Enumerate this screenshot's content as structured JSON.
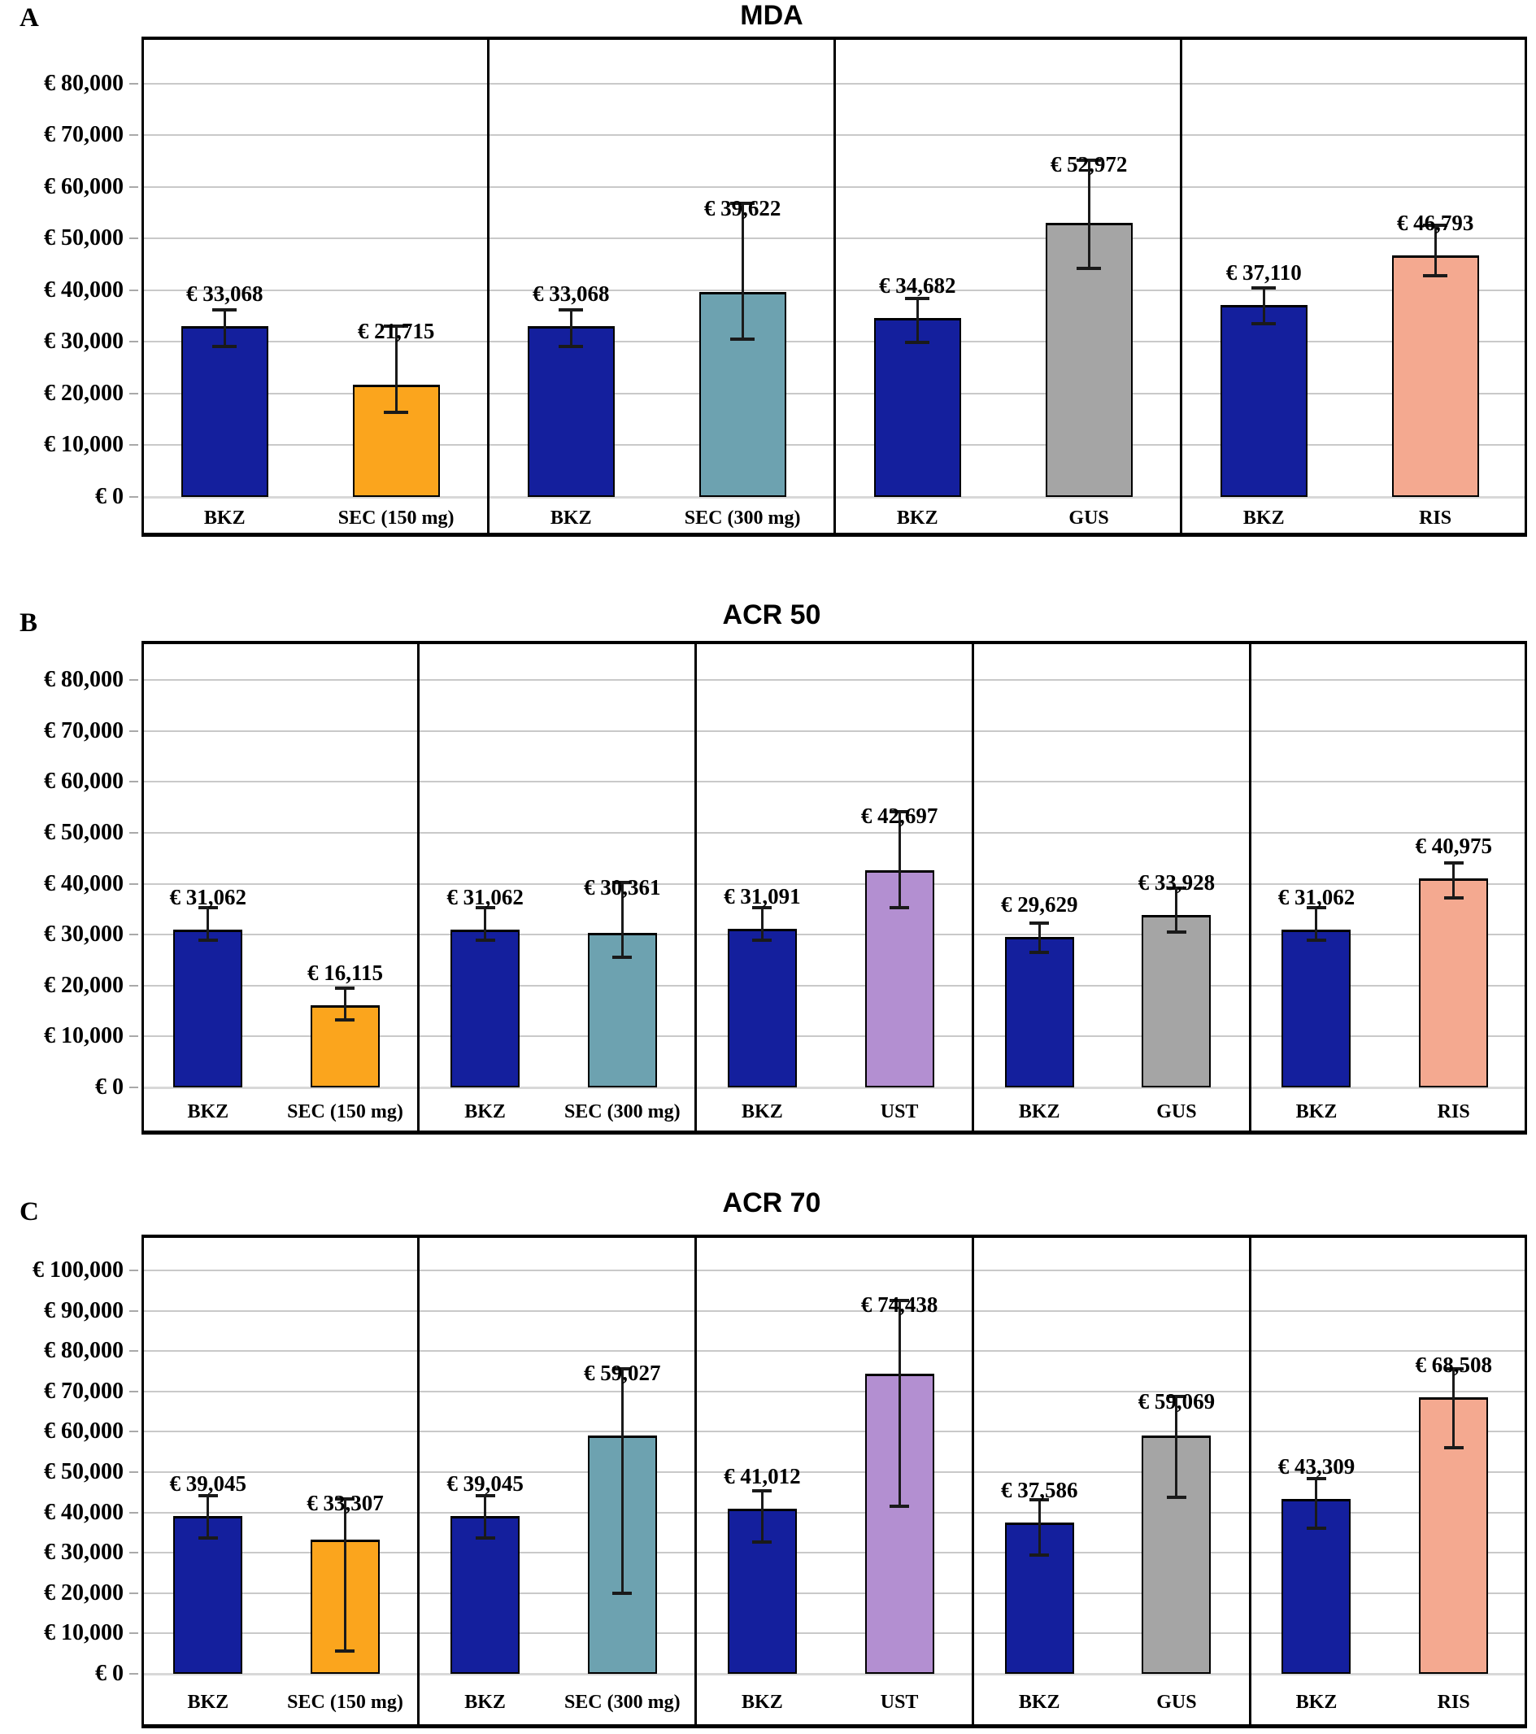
{
  "style": {
    "background": "#FFFFFF",
    "text_color": "#000000",
    "grid_color": "#C9C9C9",
    "zero_line_color": "#D8D8D8",
    "error_bar_color": "#1A1A1A",
    "box_border_color": "#000000",
    "colors": {
      "bkz": "#141F9D",
      "sec150": "#FBA51D",
      "sec300": "#6DA2B0",
      "ust": "#B38FD1",
      "gus": "#A5A5A5",
      "ris": "#F4A990"
    }
  },
  "chart_data": [
    {
      "type": "bar",
      "panel_letter": "A",
      "title": "MDA",
      "ylim": [
        0,
        89100
      ],
      "ytick_step": 10000,
      "grid": true,
      "legend": "none",
      "yticks": [
        {
          "value": 80000,
          "label": "€ 80,000"
        },
        {
          "value": 70000,
          "label": "€ 70,000"
        },
        {
          "value": 60000,
          "label": "€ 60,000"
        },
        {
          "value": 50000,
          "label": "€ 50,000"
        },
        {
          "value": 40000,
          "label": "€ 40,000"
        },
        {
          "value": 30000,
          "label": "€ 30,000"
        },
        {
          "value": 20000,
          "label": "€ 20,000"
        },
        {
          "value": 10000,
          "label": "€ 10,000"
        },
        {
          "value": 0,
          "label": "€ 0"
        }
      ],
      "groups": [
        {
          "bars": [
            {
              "category": "BKZ",
              "value": 33068,
              "label": "€ 33,068",
              "color": "bkz",
              "err_low": 29000,
              "err_high": 36300
            },
            {
              "category": "SEC (150 mg)",
              "value": 21715,
              "label": "€ 21,715",
              "color": "sec150",
              "err_low": 16300,
              "err_high": 33100
            }
          ]
        },
        {
          "bars": [
            {
              "category": "BKZ",
              "value": 33068,
              "label": "€ 33,068",
              "color": "bkz",
              "err_low": 29000,
              "err_high": 36300
            },
            {
              "category": "SEC (300 mg)",
              "value": 39622,
              "label": "€ 39,622",
              "color": "sec300",
              "err_low": 30500,
              "err_high": 56900
            }
          ]
        },
        {
          "bars": [
            {
              "category": "BKZ",
              "value": 34682,
              "label": "€ 34,682",
              "color": "bkz",
              "err_low": 29800,
              "err_high": 38500
            },
            {
              "category": "GUS",
              "value": 52972,
              "label": "€ 52,972",
              "color": "gus",
              "err_low": 44200,
              "err_high": 65300
            }
          ]
        },
        {
          "bars": [
            {
              "category": "BKZ",
              "value": 37110,
              "label": "€ 37,110",
              "color": "bkz",
              "err_low": 33500,
              "err_high": 40500
            },
            {
              "category": "RIS",
              "value": 46793,
              "label": "€ 46,793",
              "color": "ris",
              "err_low": 42700,
              "err_high": 52600
            }
          ]
        }
      ]
    },
    {
      "type": "bar",
      "panel_letter": "B",
      "title": "ACR 50",
      "ylim": [
        0,
        87700
      ],
      "ytick_step": 10000,
      "grid": true,
      "legend": "none",
      "yticks": [
        {
          "value": 80000,
          "label": "€ 80,000"
        },
        {
          "value": 70000,
          "label": "€ 70,000"
        },
        {
          "value": 60000,
          "label": "€ 60,000"
        },
        {
          "value": 50000,
          "label": "€ 50,000"
        },
        {
          "value": 40000,
          "label": "€ 40,000"
        },
        {
          "value": 30000,
          "label": "€ 30,000"
        },
        {
          "value": 20000,
          "label": "€ 20,000"
        },
        {
          "value": 10000,
          "label": "€ 10,000"
        },
        {
          "value": 0,
          "label": "€ 0"
        }
      ],
      "groups": [
        {
          "bars": [
            {
              "category": "BKZ",
              "value": 31062,
              "label": "€ 31,062",
              "color": "bkz",
              "err_low": 28900,
              "err_high": 35400
            },
            {
              "category": "SEC (150 mg)",
              "value": 16115,
              "label": "€ 16,115",
              "color": "sec150",
              "err_low": 13100,
              "err_high": 19600
            }
          ]
        },
        {
          "bars": [
            {
              "category": "BKZ",
              "value": 31062,
              "label": "€ 31,062",
              "color": "bkz",
              "err_low": 28900,
              "err_high": 35400
            },
            {
              "category": "SEC (300 mg)",
              "value": 30361,
              "label": "€ 30,361",
              "color": "sec300",
              "err_low": 25400,
              "err_high": 40300
            }
          ]
        },
        {
          "bars": [
            {
              "category": "BKZ",
              "value": 31091,
              "label": "€ 31,091",
              "color": "bkz",
              "err_low": 28900,
              "err_high": 35400
            },
            {
              "category": "UST",
              "value": 42697,
              "label": "€ 42,697",
              "color": "ust",
              "err_low": 35300,
              "err_high": 54300
            }
          ]
        },
        {
          "bars": [
            {
              "category": "BKZ",
              "value": 29629,
              "label": "€ 29,629",
              "color": "bkz",
              "err_low": 26500,
              "err_high": 32400
            },
            {
              "category": "GUS",
              "value": 33928,
              "label": "€ 33,928",
              "color": "gus",
              "err_low": 30400,
              "err_high": 39200
            }
          ]
        },
        {
          "bars": [
            {
              "category": "BKZ",
              "value": 31062,
              "label": "€ 31,062",
              "color": "bkz",
              "err_low": 28900,
              "err_high": 35400
            },
            {
              "category": "RIS",
              "value": 40975,
              "label": "€ 40,975",
              "color": "ris",
              "err_low": 37200,
              "err_high": 44100
            }
          ]
        }
      ]
    },
    {
      "type": "bar",
      "panel_letter": "C",
      "title": "ACR 70",
      "ylim": [
        0,
        108900
      ],
      "ytick_step": 10000,
      "grid": true,
      "legend": "none",
      "yticks": [
        {
          "value": 100000,
          "label": "€ 100,000"
        },
        {
          "value": 90000,
          "label": "€ 90,000"
        },
        {
          "value": 80000,
          "label": "€ 80,000"
        },
        {
          "value": 70000,
          "label": "€ 70,000"
        },
        {
          "value": 60000,
          "label": "€ 60,000"
        },
        {
          "value": 50000,
          "label": "€ 50,000"
        },
        {
          "value": 40000,
          "label": "€ 40,000"
        },
        {
          "value": 30000,
          "label": "€ 30,000"
        },
        {
          "value": 20000,
          "label": "€ 20,000"
        },
        {
          "value": 10000,
          "label": "€ 10,000"
        },
        {
          "value": 0,
          "label": "€ 0"
        }
      ],
      "groups": [
        {
          "bars": [
            {
              "category": "BKZ",
              "value": 39045,
              "label": "€ 39,045",
              "color": "bkz",
              "err_low": 33600,
              "err_high": 44300
            },
            {
              "category": "SEC (150 mg)",
              "value": 33307,
              "label": "€ 33,307",
              "color": "sec150",
              "err_low": 5500,
              "err_high": 43500
            }
          ]
        },
        {
          "bars": [
            {
              "category": "BKZ",
              "value": 39045,
              "label": "€ 39,045",
              "color": "bkz",
              "err_low": 33600,
              "err_high": 44300
            },
            {
              "category": "SEC (300 mg)",
              "value": 59027,
              "label": "€ 59,027",
              "color": "sec300",
              "err_low": 19800,
              "err_high": 75800
            }
          ]
        },
        {
          "bars": [
            {
              "category": "BKZ",
              "value": 41012,
              "label": "€ 41,012",
              "color": "bkz",
              "err_low": 32500,
              "err_high": 45400
            },
            {
              "category": "UST",
              "value": 74438,
              "label": "€ 74,438",
              "color": "ust",
              "err_low": 41500,
              "err_high": 92700
            }
          ]
        },
        {
          "bars": [
            {
              "category": "BKZ",
              "value": 37586,
              "label": "€ 37,586",
              "color": "bkz",
              "err_low": 29400,
              "err_high": 43300
            },
            {
              "category": "GUS",
              "value": 59069,
              "label": "€ 59,069",
              "color": "gus",
              "err_low": 43600,
              "err_high": 68800
            }
          ]
        },
        {
          "bars": [
            {
              "category": "BKZ",
              "value": 43309,
              "label": "€ 43,309",
              "color": "bkz",
              "err_low": 35900,
              "err_high": 48600
            },
            {
              "category": "RIS",
              "value": 68508,
              "label": "€ 68,508",
              "color": "ris",
              "err_low": 56000,
              "err_high": 75800
            }
          ]
        }
      ]
    }
  ]
}
